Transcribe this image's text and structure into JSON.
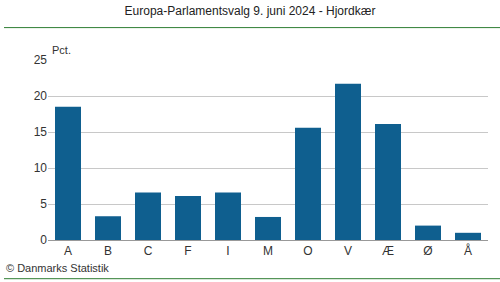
{
  "chart_data": {
    "type": "bar",
    "title": "Europa-Parlamentsvalg 9. juni 2024 - Hjordkær",
    "y_label": "Pct.",
    "categories": [
      "A",
      "B",
      "C",
      "F",
      "I",
      "M",
      "O",
      "V",
      "Æ",
      "Ø",
      "Å"
    ],
    "values": [
      18.5,
      3.3,
      6.6,
      6.1,
      6.6,
      3.2,
      15.6,
      21.7,
      16.1,
      2.0,
      1.0
    ],
    "color": "#0f5f8f",
    "ylim": [
      0,
      25
    ],
    "yticks": [
      0,
      5,
      10,
      15,
      20,
      25
    ],
    "grid": true,
    "annotations": [
      {
        "text": "© Danmarks Statistik"
      }
    ]
  }
}
